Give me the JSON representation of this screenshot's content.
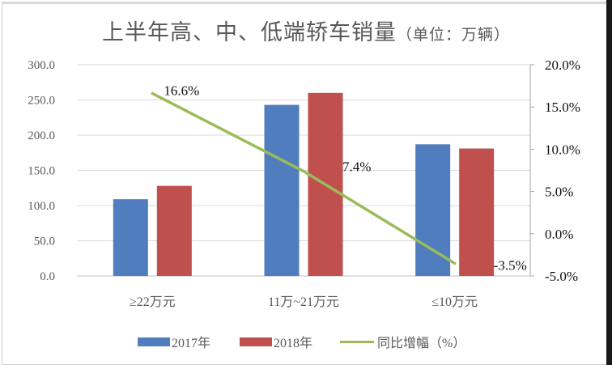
{
  "chart_data": {
    "type": "bar+line",
    "title": "上半年高、中、低端轿车销量",
    "subtitle": "（单位：万辆）",
    "categories": [
      "≥22万元",
      "11万~21万元",
      "≤10万元"
    ],
    "series": [
      {
        "name": "2017年",
        "type": "bar",
        "axis": "left",
        "color": "#4f7dbd",
        "values": [
          109,
          243,
          187
        ]
      },
      {
        "name": "2018年",
        "type": "bar",
        "axis": "left",
        "color": "#c0504d",
        "values": [
          128,
          260,
          181
        ]
      },
      {
        "name": "同比增幅（%）",
        "type": "line",
        "axis": "right",
        "color": "#9bbb59",
        "values": [
          16.6,
          7.4,
          -3.5
        ],
        "labels": [
          "16.6%",
          "7.4%",
          "-3.5%"
        ]
      }
    ],
    "left_axis": {
      "min": 0,
      "max": 300,
      "step": 50,
      "ticks": [
        "300.0",
        "250.0",
        "200.0",
        "150.0",
        "100.0",
        "50.0",
        "0.0"
      ]
    },
    "right_axis": {
      "min": -5,
      "max": 20,
      "step": 5,
      "ticks": [
        "20.0%",
        "15.0%",
        "10.0%",
        "5.0%",
        "0.0%",
        "-5.0%"
      ]
    },
    "grid": true,
    "legend_position": "bottom"
  },
  "title": {
    "main": "上半年高、中、低端轿车销量",
    "unit": "（单位：万辆）"
  },
  "legend": [
    {
      "label": "2017年",
      "color": "#4f7dbd",
      "kind": "bar"
    },
    {
      "label": "2018年",
      "color": "#c0504d",
      "kind": "bar"
    },
    {
      "label": "同比增幅（%）",
      "color": "#9bbb59",
      "kind": "line"
    }
  ]
}
